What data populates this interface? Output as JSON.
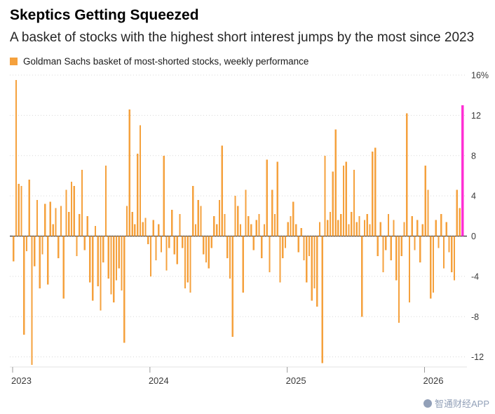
{
  "header": {
    "title": "Skeptics Getting Squeezed",
    "subtitle": "A basket of stocks with the highest short interest jumps by the most since 2023"
  },
  "legend": {
    "label": "Goldman Sachs basket of most-shorted stocks, weekly performance",
    "swatch_color": "#F5A13D"
  },
  "watermark": {
    "text": "智通财经APP",
    "color": "#92A0B8"
  },
  "chart_data": {
    "type": "bar",
    "title": "Skeptics Getting Squeezed",
    "subtitle": "A basket of stocks with the highest short interest jumps by the most since 2023",
    "unit": "%",
    "frequency": "weekly",
    "legend_position": "top-left",
    "grid": "dotted-horizontal",
    "series": [
      {
        "name": "Goldman Sachs basket of most-shorted stocks, weekly performance",
        "values": [
          -2.5,
          15.5,
          5.2,
          5.0,
          -9.8,
          -1.5,
          5.6,
          -12.8,
          -3.0,
          3.6,
          -5.2,
          -1.8,
          3.2,
          -4.8,
          3.4,
          1.2,
          2.8,
          -2.2,
          3.0,
          -6.2,
          4.6,
          2.4,
          5.4,
          5.0,
          -2.0,
          2.2,
          6.6,
          -1.4,
          2.0,
          -4.6,
          -6.4,
          1.0,
          -5.0,
          -7.4,
          -2.6,
          7.0,
          -4.2,
          -5.8,
          -6.6,
          -4.4,
          -3.2,
          -5.4,
          -10.6,
          3.0,
          12.6,
          2.4,
          1.2,
          8.2,
          11.0,
          1.4,
          1.8,
          -0.8,
          -4.0,
          1.6,
          -2.4,
          1.2,
          -1.6,
          8.0,
          -3.4,
          -1.2,
          2.6,
          -1.8,
          -2.8,
          2.2,
          -1.2,
          -5.2,
          -4.6,
          -5.6,
          5.0,
          1.2,
          3.6,
          3.0,
          -1.8,
          -2.6,
          -3.2,
          -1.2,
          2.0,
          1.2,
          3.6,
          9.0,
          2.2,
          -2.2,
          -4.2,
          -10.0,
          4.0,
          3.0,
          1.2,
          -5.6,
          4.6,
          2.0,
          1.2,
          -1.4,
          1.6,
          2.2,
          -2.2,
          1.2,
          7.6,
          -3.6,
          4.6,
          2.2,
          7.4,
          -4.6,
          -2.2,
          -1.2,
          1.4,
          2.0,
          3.4,
          1.2,
          -1.6,
          0.8,
          -2.4,
          -4.6,
          -2.0,
          -6.4,
          -5.2,
          -7.0,
          1.4,
          -12.6,
          8.0,
          1.6,
          2.4,
          6.4,
          10.6,
          1.6,
          2.2,
          7.0,
          7.4,
          1.2,
          2.4,
          6.6,
          1.4,
          2.0,
          -8.0,
          1.6,
          2.2,
          1.2,
          8.4,
          8.8,
          -2.0,
          1.4,
          -3.6,
          -1.4,
          2.2,
          -2.4,
          1.6,
          -4.4,
          -8.6,
          -2.0,
          1.4,
          12.2,
          -6.6,
          2.0,
          -1.4,
          1.6,
          -2.6,
          1.2,
          7.0,
          4.6,
          -6.2,
          -5.6,
          1.6,
          -1.2,
          2.2,
          -3.2,
          1.4,
          -1.6,
          -3.6,
          -4.4,
          4.6,
          2.8,
          13.0
        ]
      }
    ],
    "highlight_last_bar": true,
    "highlight_value": 13.0,
    "x_axis": {
      "start": "2023 week 1",
      "ticks": [
        {
          "index": 0,
          "label": "2023"
        },
        {
          "index": 52,
          "label": "2024"
        },
        {
          "index": 104,
          "label": "2025"
        },
        {
          "index": 156,
          "label": "2026"
        }
      ]
    },
    "y_axis": {
      "range": [
        -13,
        16
      ],
      "ticks": [
        {
          "value": 16,
          "label": "16%"
        },
        {
          "value": 12,
          "label": "12"
        },
        {
          "value": 8,
          "label": "8"
        },
        {
          "value": 4,
          "label": "4"
        },
        {
          "value": 0,
          "label": "0"
        },
        {
          "value": -4,
          "label": "-4"
        },
        {
          "value": -8,
          "label": "-8"
        },
        {
          "value": -12,
          "label": "-12"
        }
      ]
    },
    "colors": {
      "bar": "#F5A13D",
      "highlight": "#FF2FD4",
      "zero_line": "#333333",
      "grid": "#D8D8D8"
    }
  }
}
